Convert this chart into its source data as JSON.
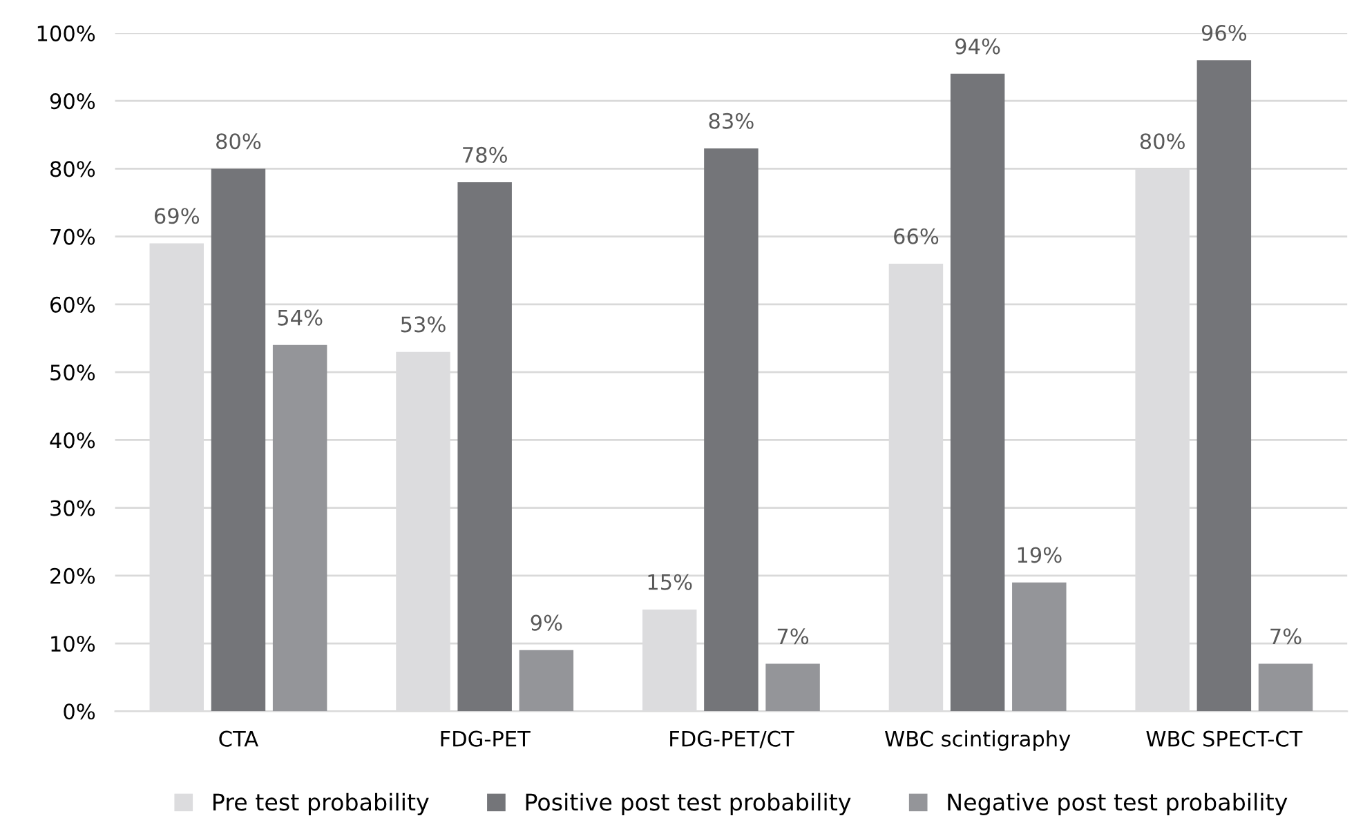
{
  "chart_data": {
    "type": "bar",
    "categories": [
      "CTA",
      "FDG-PET",
      "FDG-PET/CT",
      "WBC scintigraphy",
      "WBC SPECT-CT"
    ],
    "series": [
      {
        "name": "Pre test probability",
        "color": "#dcdcde",
        "values": [
          69,
          53,
          15,
          66,
          80
        ],
        "value_labels": [
          "69%",
          "53%",
          "15%",
          "66%",
          "80%"
        ]
      },
      {
        "name": "Positive post test probability",
        "color": "#747579",
        "values": [
          80,
          78,
          83,
          94,
          96
        ],
        "value_labels": [
          "80%",
          "78%",
          "83%",
          "94%",
          "96%"
        ]
      },
      {
        "name": "Negative post test probability",
        "color": "#949599",
        "values": [
          54,
          9,
          7,
          19,
          7
        ],
        "value_labels": [
          "54%",
          "9%",
          "7%",
          "19%",
          "7%"
        ]
      }
    ],
    "ylim": [
      0,
      100
    ],
    "yticks": [
      {
        "value": 0,
        "label": "0%"
      },
      {
        "value": 10,
        "label": "10%"
      },
      {
        "value": 20,
        "label": "20%"
      },
      {
        "value": 30,
        "label": "30%"
      },
      {
        "value": 40,
        "label": "40%"
      },
      {
        "value": 50,
        "label": "50%"
      },
      {
        "value": 60,
        "label": "60%"
      },
      {
        "value": 70,
        "label": "70%"
      },
      {
        "value": 80,
        "label": "80%"
      },
      {
        "value": 90,
        "label": "90%"
      },
      {
        "value": 100,
        "label": "100%"
      }
    ],
    "grid": "y",
    "legend": "bottom"
  }
}
